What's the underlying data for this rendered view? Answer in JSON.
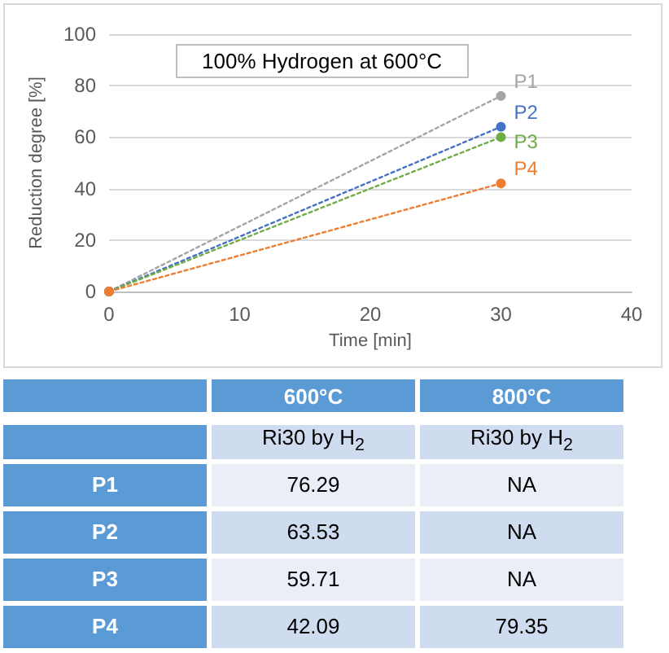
{
  "chart_data": [
    {
      "type": "line",
      "title": "100% Hydrogen at 600°C",
      "xlabel": "Time [min]",
      "ylabel": "Reduction degree [%]",
      "x": [
        0,
        30
      ],
      "series": [
        {
          "name": "P1",
          "color": "#a5a5a5",
          "values": [
            0,
            76
          ]
        },
        {
          "name": "P2",
          "color": "#4472c4",
          "values": [
            0,
            64
          ]
        },
        {
          "name": "P3",
          "color": "#70ad47",
          "values": [
            0,
            60
          ]
        },
        {
          "name": "P4",
          "color": "#ed7d31",
          "values": [
            0,
            42
          ]
        }
      ],
      "xlim": [
        0,
        40
      ],
      "xticks": [
        0,
        10,
        20,
        30,
        40
      ],
      "ylim": [
        0,
        100
      ],
      "yticks": [
        0,
        20,
        40,
        60,
        80,
        100
      ],
      "grid": "y",
      "legend": false,
      "marker": "circle",
      "line_style": "dotted"
    },
    {
      "type": "other",
      "categories": [
        "600°C",
        "800°C"
      ],
      "annotations": [
        "Ri30 by H$_{2}$",
        "Ri30 by H$_{2}$"
      ],
      "y_categories": [
        "P1",
        "P2",
        "P3",
        "P4"
      ],
      "cell_labels": [
        [
          "76.29",
          "NA"
        ],
        [
          "63.53",
          "NA"
        ],
        [
          "59.71",
          "NA"
        ],
        [
          "42.09",
          "79.35"
        ]
      ]
    }
  ]
}
